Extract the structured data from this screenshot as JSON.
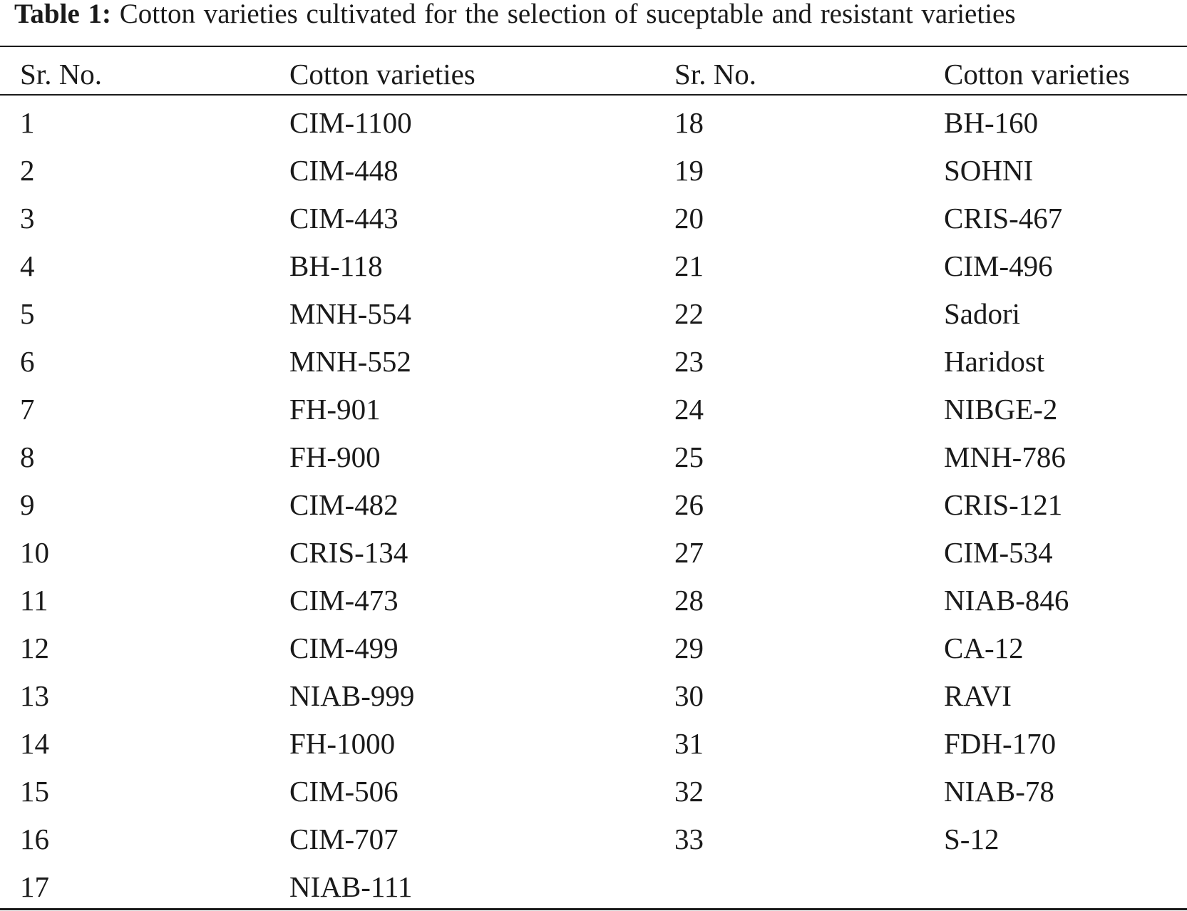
{
  "caption": {
    "label": "Table 1:",
    "text": "Cotton varieties cultivated for the selection of suceptable and resistant varieties"
  },
  "table": {
    "headers": [
      "Sr. No.",
      "Cotton varieties",
      "Sr. No.",
      "Cotton varieties"
    ],
    "rows": [
      [
        "1",
        "CIM-1100",
        "18",
        "BH-160"
      ],
      [
        "2",
        "CIM-448",
        "19",
        "SOHNI"
      ],
      [
        "3",
        "CIM-443",
        "20",
        "CRIS-467"
      ],
      [
        "4",
        "BH-118",
        "21",
        "CIM-496"
      ],
      [
        "5",
        "MNH-554",
        "22",
        "Sadori"
      ],
      [
        "6",
        "MNH-552",
        "23",
        "Haridost"
      ],
      [
        "7",
        "FH-901",
        "24",
        "NIBGE-2"
      ],
      [
        "8",
        "FH-900",
        "25",
        "MNH-786"
      ],
      [
        "9",
        "CIM-482",
        "26",
        "CRIS-121"
      ],
      [
        "10",
        "CRIS-134",
        "27",
        "CIM-534"
      ],
      [
        "11",
        "CIM-473",
        "28",
        "NIAB-846"
      ],
      [
        "12",
        "CIM-499",
        "29",
        "CA-12"
      ],
      [
        "13",
        "NIAB-999",
        "30",
        "RAVI"
      ],
      [
        "14",
        "FH-1000",
        "31",
        "FDH-170"
      ],
      [
        "15",
        "CIM-506",
        "32",
        "NIAB-78"
      ],
      [
        "16",
        "CIM-707",
        "33",
        "S-12"
      ],
      [
        "17",
        "NIAB-111",
        "",
        ""
      ]
    ]
  }
}
